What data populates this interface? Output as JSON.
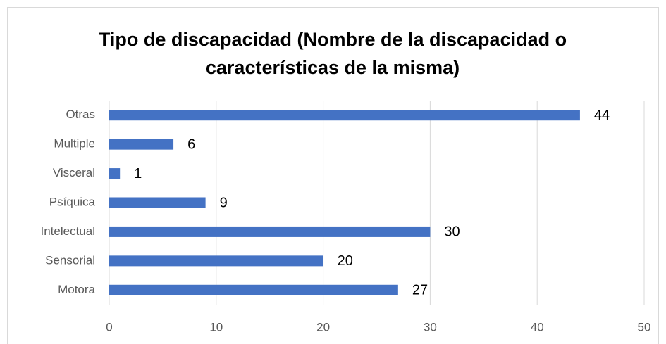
{
  "chart_data": {
    "type": "hbar",
    "title": "Tipo de discapacidad (Nombre de la discapacidad o características de la misma)",
    "categories": [
      "Motora",
      "Sensorial",
      "Intelectual",
      "Psíquica",
      "Visceral",
      "Multiple",
      "Otras"
    ],
    "values": [
      27,
      20,
      30,
      9,
      1,
      6,
      44
    ],
    "color": "#4472c4",
    "xlim": [
      0,
      50
    ],
    "xticks": [
      0,
      10,
      20,
      30,
      40,
      50
    ],
    "grid": true
  }
}
